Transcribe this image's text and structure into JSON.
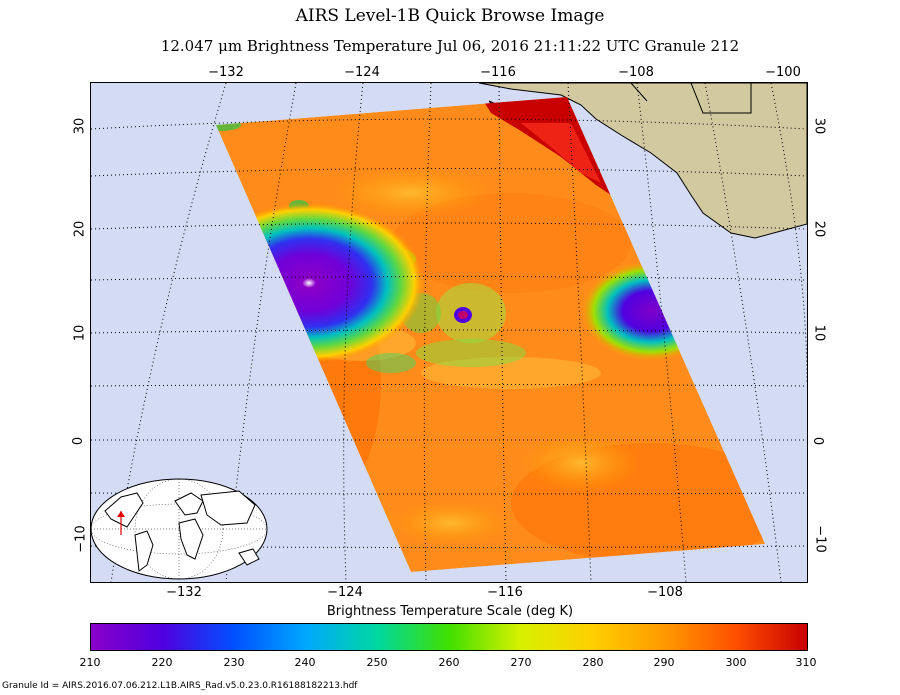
{
  "title": "AIRS Level-1B Quick Browse Image",
  "subtitle": "12.047 μm Brightness Temperature    Jul 06, 2016 21:11:22 UTC  Granule 212",
  "lon_ticks_top": [
    "−132",
    "−124",
    "−116",
    "−108",
    "−100"
  ],
  "lon_ticks_bottom": [
    "−132",
    "−124",
    "−116",
    "−108"
  ],
  "lat_ticks": [
    "30",
    "20",
    "10",
    "0",
    "−10"
  ],
  "colorbar": {
    "label": "Brightness Temperature Scale (deg K)",
    "ticks": [
      "210",
      "220",
      "230",
      "240",
      "250",
      "260",
      "270",
      "280",
      "290",
      "300",
      "310"
    ],
    "min": 210,
    "max": 310,
    "colors": [
      "#8a00c8",
      "#5000e0",
      "#0050ff",
      "#00a8ff",
      "#00d8a0",
      "#40e000",
      "#d8f000",
      "#ffd000",
      "#ff9a00",
      "#ff5000",
      "#c80000"
    ]
  },
  "granule_id": "Granule Id = AIRS.2016.07.06.212.L1B.AIRS_Rad.v5.0.23.0.R16188182213.hdf",
  "colors": {
    "ocean": "#d4dcf5",
    "land": "#d2c9a0",
    "swath_base": "#ff8c1a"
  }
}
